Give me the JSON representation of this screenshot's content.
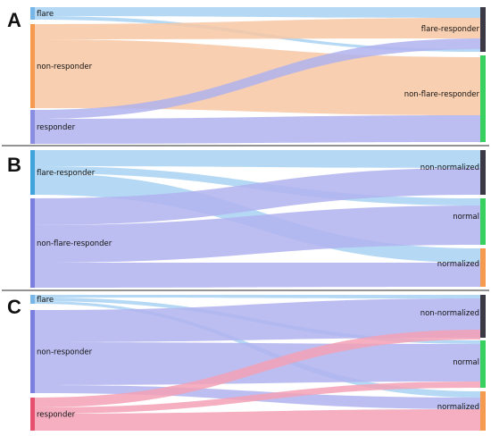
{
  "panels": [
    {
      "letter": "A",
      "left_nodes": [
        {
          "label": "flare",
          "color": "#78b6e8"
        },
        {
          "label": "non-responder",
          "color": "#f59a4e"
        },
        {
          "label": "responder",
          "color": "#8a8ee3"
        }
      ],
      "right_nodes": [
        {
          "label": "flare-responder",
          "color": "#3b3943"
        },
        {
          "label": "non-flare-responder",
          "color": "#38d160"
        }
      ],
      "flows": [
        {
          "from": 0,
          "to": 0,
          "color": "#a8d2f2"
        },
        {
          "from": 0,
          "to": 1,
          "color": "#a8d2f2"
        },
        {
          "from": 1,
          "to": 0,
          "color": "#f8c7a3"
        },
        {
          "from": 1,
          "to": 1,
          "color": "#f8c7a3"
        },
        {
          "from": 2,
          "to": 0,
          "color": "#b0b3ef"
        },
        {
          "from": 2,
          "to": 1,
          "color": "#b0b3ef"
        }
      ]
    },
    {
      "letter": "B",
      "left_nodes": [
        {
          "label": "flare-responder",
          "color": "#3fa3dc"
        },
        {
          "label": "non-flare-responder",
          "color": "#7b7fe0"
        }
      ],
      "right_nodes": [
        {
          "label": "non-normalized",
          "color": "#3b3943"
        },
        {
          "label": "normal",
          "color": "#38d160"
        },
        {
          "label": "normalized",
          "color": "#f59a4e"
        }
      ],
      "flows": [
        {
          "from": 0,
          "to": 0,
          "color": "#a8d2f2"
        },
        {
          "from": 0,
          "to": 1,
          "color": "#a8d2f2"
        },
        {
          "from": 0,
          "to": 2,
          "color": "#a8d2f2"
        },
        {
          "from": 1,
          "to": 0,
          "color": "#b0b3ef"
        },
        {
          "from": 1,
          "to": 1,
          "color": "#b0b3ef"
        },
        {
          "from": 1,
          "to": 2,
          "color": "#b0b3ef"
        }
      ]
    },
    {
      "letter": "C",
      "left_nodes": [
        {
          "label": "flare",
          "color": "#78b6e8"
        },
        {
          "label": "non-responder",
          "color": "#7b7fe0"
        },
        {
          "label": "responder",
          "color": "#e4506e"
        }
      ],
      "right_nodes": [
        {
          "label": "non-normalized",
          "color": "#3b3943"
        },
        {
          "label": "normal",
          "color": "#38d160"
        },
        {
          "label": "normalized",
          "color": "#f59a4e"
        }
      ],
      "flows": [
        {
          "from": 0,
          "to": 0,
          "color": "#a8d2f2"
        },
        {
          "from": 0,
          "to": 1,
          "color": "#a8d2f2"
        },
        {
          "from": 0,
          "to": 2,
          "color": "#a8d2f2"
        },
        {
          "from": 1,
          "to": 0,
          "color": "#b0b3ef"
        },
        {
          "from": 1,
          "to": 1,
          "color": "#b0b3ef"
        },
        {
          "from": 1,
          "to": 2,
          "color": "#b0b3ef"
        },
        {
          "from": 2,
          "to": 0,
          "color": "#f3a1b6"
        },
        {
          "from": 2,
          "to": 1,
          "color": "#f3a1b6"
        },
        {
          "from": 2,
          "to": 2,
          "color": "#f3a1b6"
        }
      ]
    }
  ]
}
